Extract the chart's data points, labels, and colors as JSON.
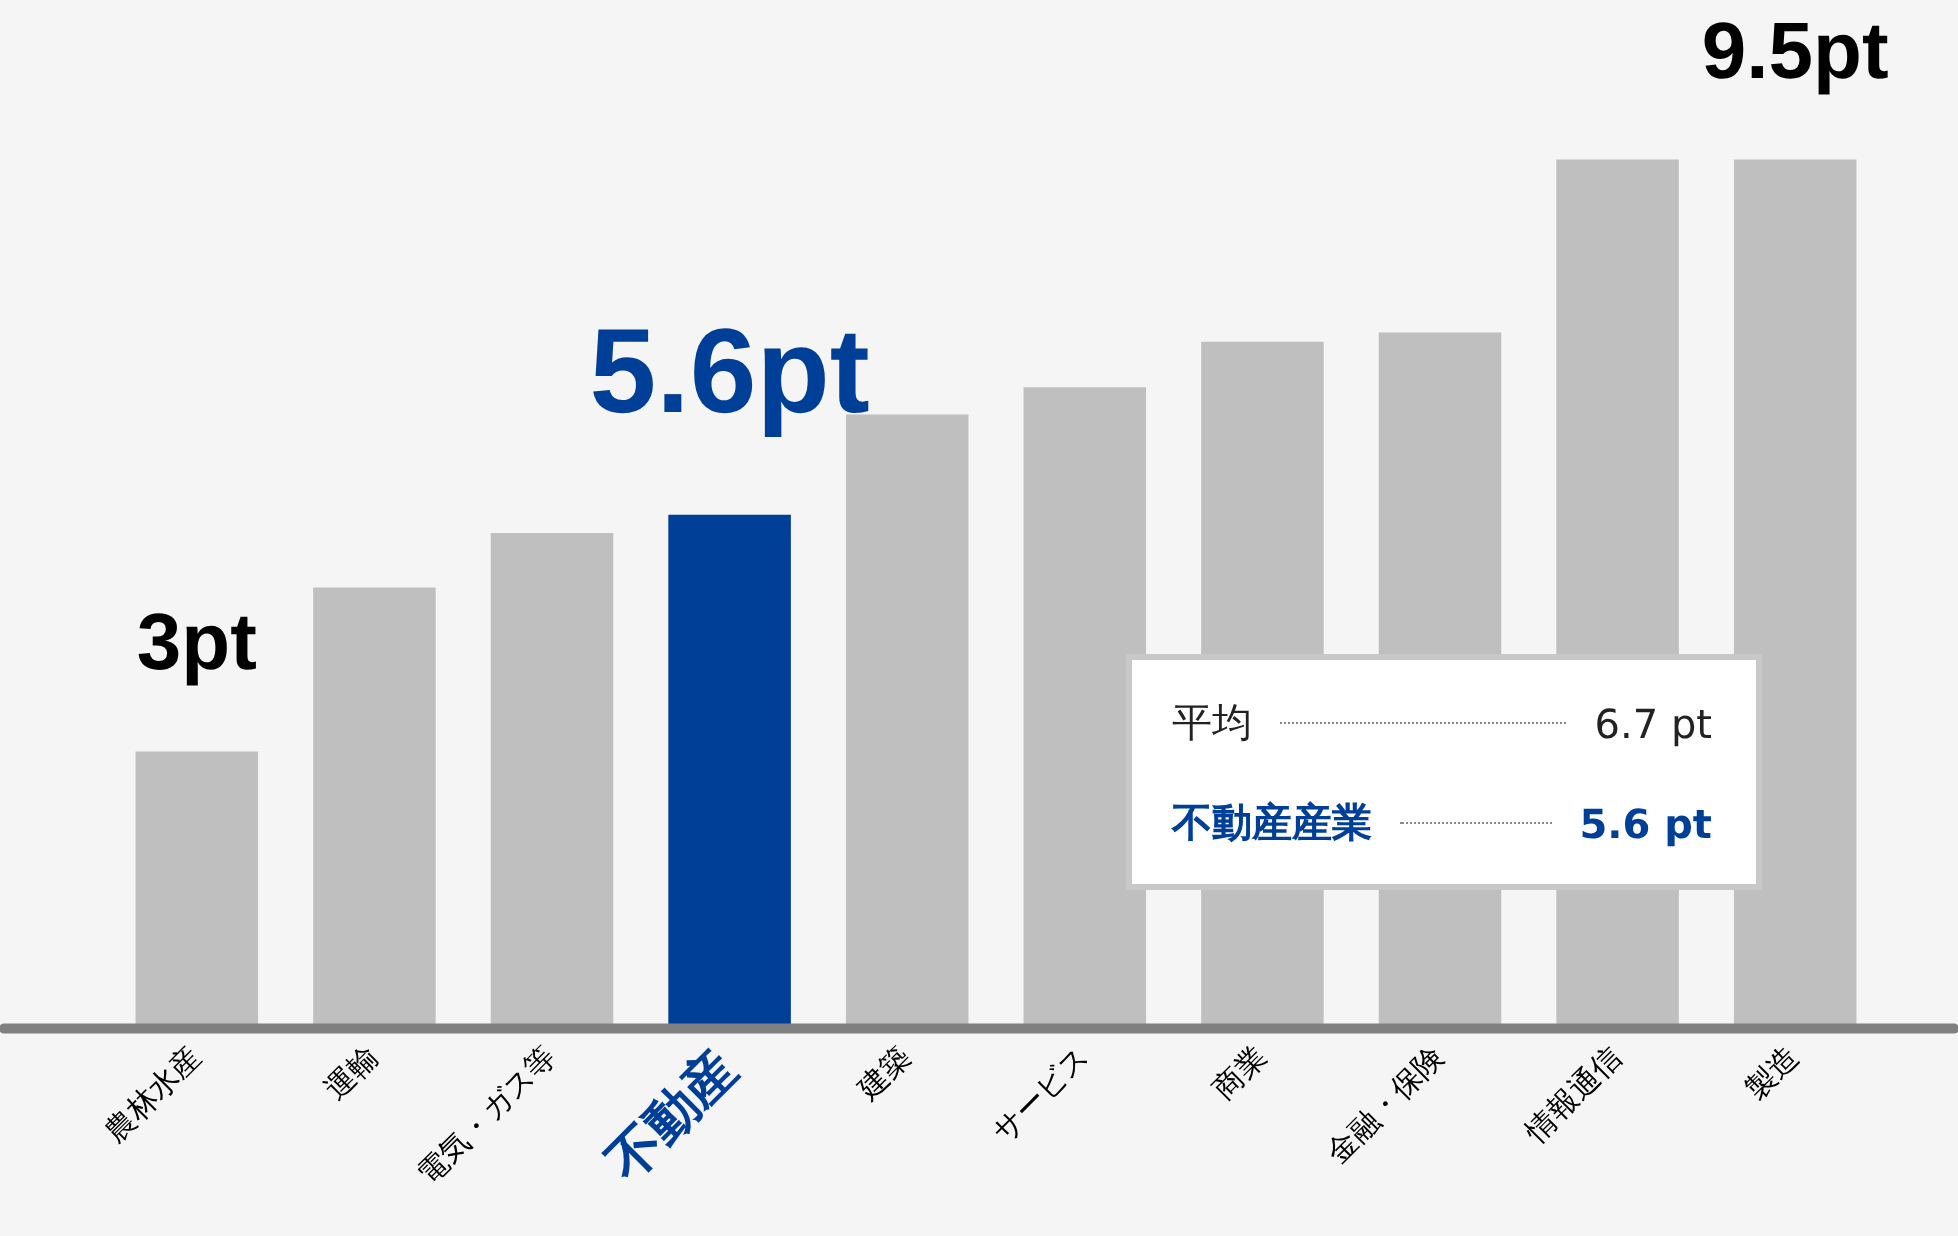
{
  "chart_data": {
    "type": "bar",
    "categories": [
      "農林水産",
      "運輸",
      "電気・ガス等",
      "不動産",
      "建築",
      "サービス",
      "商業",
      "金融・保険",
      "情報通信",
      "製造"
    ],
    "values": [
      3,
      4.8,
      5.4,
      5.6,
      6.7,
      7.0,
      7.5,
      7.6,
      9.5,
      9.5
    ],
    "colors": [
      "#bfbfbf",
      "#bfbfbf",
      "#bfbfbf",
      "#003f98",
      "#bfbfbf",
      "#bfbfbf",
      "#bfbfbf",
      "#bfbfbf",
      "#bfbfbf",
      "#bfbfbf"
    ],
    "value_labels": [
      "3pt",
      null,
      null,
      "5.6pt",
      null,
      null,
      null,
      null,
      null,
      "9.5pt"
    ],
    "tick_labels": "x",
    "grid": false,
    "legend": false,
    "annotations": [
      "平均",
      "6.7 pt",
      "不動産産業",
      "5.6 pt"
    ]
  }
}
